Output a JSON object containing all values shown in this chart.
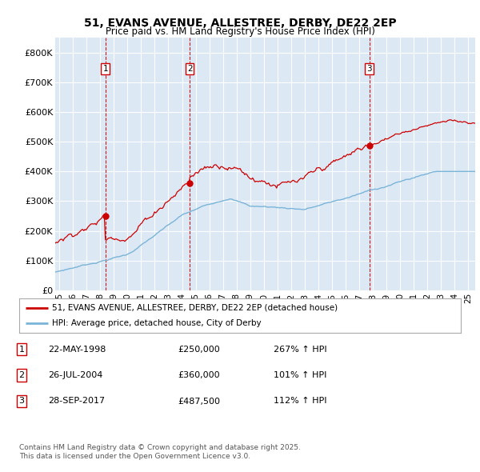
{
  "title": "51, EVANS AVENUE, ALLESTREE, DERBY, DE22 2EP",
  "subtitle": "Price paid vs. HM Land Registry's House Price Index (HPI)",
  "ylim": [
    0,
    850000
  ],
  "yticks": [
    0,
    100000,
    200000,
    300000,
    400000,
    500000,
    600000,
    700000,
    800000
  ],
  "ytick_labels": [
    "£0",
    "£100K",
    "£200K",
    "£300K",
    "£400K",
    "£500K",
    "£600K",
    "£700K",
    "£800K"
  ],
  "xlim_start": 1994.7,
  "xlim_end": 2025.5,
  "bg_color": "#dce9f5",
  "grid_color": "#ffffff",
  "sale_color": "#cc0000",
  "hpi_color": "#7ab4d8",
  "sale_dates": [
    1998.38,
    2004.56,
    2017.74
  ],
  "sale_prices": [
    250000,
    360000,
    487500
  ],
  "sale_labels": [
    "1",
    "2",
    "3"
  ],
  "legend_sale": "51, EVANS AVENUE, ALLESTREE, DERBY, DE22 2EP (detached house)",
  "legend_hpi": "HPI: Average price, detached house, City of Derby",
  "footer1": "Contains HM Land Registry data © Crown copyright and database right 2025.",
  "footer2": "This data is licensed under the Open Government Licence v3.0.",
  "table": [
    {
      "num": "1",
      "date": "22-MAY-1998",
      "price": "£250,000",
      "hpi": "267% ↑ HPI"
    },
    {
      "num": "2",
      "date": "26-JUL-2004",
      "price": "£360,000",
      "hpi": "101% ↑ HPI"
    },
    {
      "num": "3",
      "date": "28-SEP-2017",
      "price": "£487,500",
      "hpi": "112% ↑ HPI"
    }
  ]
}
